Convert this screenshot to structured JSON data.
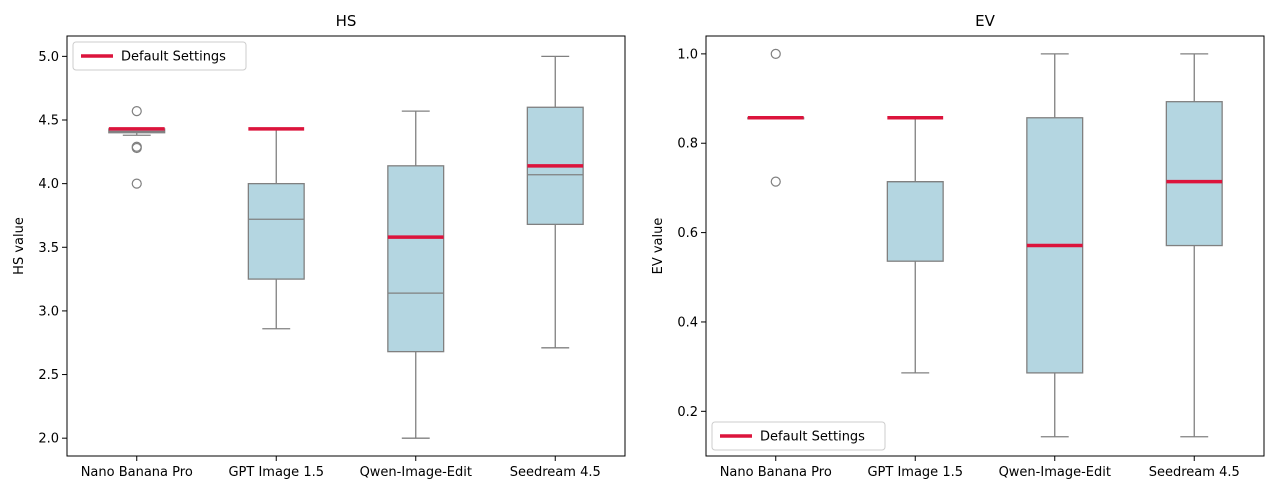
{
  "colors": {
    "box_fill": "#b4d6e1",
    "box_edge": "#808080",
    "default_marker": "#dc143c",
    "axis": "#000000"
  },
  "chart_data": [
    {
      "type": "box",
      "title": "HS",
      "xlabel": "",
      "ylabel": "HS value",
      "ylim": [
        1.86,
        5.16
      ],
      "yticks": [
        "2.0",
        "2.5",
        "3.0",
        "3.5",
        "4.0",
        "4.5",
        "5.0"
      ],
      "ytick_values": [
        2.0,
        2.5,
        3.0,
        3.5,
        4.0,
        4.5,
        5.0
      ],
      "categories": [
        "Nano Banana Pro",
        "GPT Image 1.5",
        "Qwen-Image-Edit",
        "Seedream 4.5"
      ],
      "boxes": [
        {
          "whisker_low": 4.38,
          "q1": 4.4,
          "median": 4.41,
          "q3": 4.43,
          "whisker_high": 4.43,
          "outliers": [
            4.57,
            4.29,
            4.28,
            4.0
          ]
        },
        {
          "whisker_low": 2.86,
          "q1": 3.25,
          "median": 3.72,
          "q3": 4.0,
          "whisker_high": 4.43,
          "outliers": []
        },
        {
          "whisker_low": 2.0,
          "q1": 2.68,
          "median": 3.14,
          "q3": 4.14,
          "whisker_high": 4.57,
          "outliers": []
        },
        {
          "whisker_low": 2.71,
          "q1": 3.68,
          "median": 4.07,
          "q3": 4.6,
          "whisker_high": 5.0,
          "outliers": []
        }
      ],
      "default_settings": [
        4.43,
        4.43,
        3.58,
        4.14
      ],
      "legend": {
        "label": "Default Settings",
        "position": "upper left"
      }
    },
    {
      "type": "box",
      "title": "EV",
      "xlabel": "",
      "ylabel": "EV value",
      "ylim": [
        0.1,
        1.04
      ],
      "yticks": [
        "0.2",
        "0.4",
        "0.6",
        "0.8",
        "1.0"
      ],
      "ytick_values": [
        0.2,
        0.4,
        0.6,
        0.8,
        1.0
      ],
      "categories": [
        "Nano Banana Pro",
        "GPT Image 1.5",
        "Qwen-Image-Edit",
        "Seedream 4.5"
      ],
      "boxes": [
        {
          "whisker_low": 0.857,
          "q1": 0.857,
          "median": 0.857,
          "q3": 0.857,
          "whisker_high": 0.857,
          "outliers": [
            1.0,
            0.714
          ]
        },
        {
          "whisker_low": 0.286,
          "q1": 0.536,
          "median": 0.714,
          "q3": 0.714,
          "whisker_high": 0.857,
          "outliers": []
        },
        {
          "whisker_low": 0.143,
          "q1": 0.286,
          "median": 0.571,
          "q3": 0.857,
          "whisker_high": 1.0,
          "outliers": []
        },
        {
          "whisker_low": 0.143,
          "q1": 0.571,
          "median": 0.714,
          "q3": 0.893,
          "whisker_high": 1.0,
          "outliers": []
        }
      ],
      "default_settings": [
        0.857,
        0.857,
        0.571,
        0.714
      ],
      "legend": {
        "label": "Default Settings",
        "position": "lower left"
      }
    }
  ]
}
